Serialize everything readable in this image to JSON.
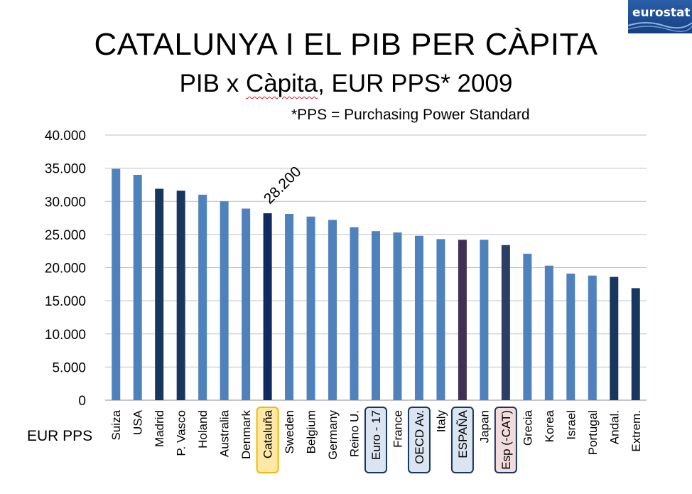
{
  "slide": {
    "title": "CATALUNYA I EL PIB PER CÀPITA",
    "subtitle_prefix": "PIB x ",
    "subtitle_word": "Càpita",
    "subtitle_suffix": ", EUR PPS*   2009",
    "footnote": "*PPS = Purchasing Power Standard",
    "logo_text": "eurostat"
  },
  "colors": {
    "bar_default": "#4f81bd",
    "bar_spanish_region": "#17375e",
    "bar_cataluna": "#0f2a5e",
    "bar_espana": "#403152",
    "bar_esp_cat": "#2b3e63",
    "highlight_yellow_fill": "#fde9a5",
    "highlight_yellow_border": "#f2b90c",
    "highlight_blue_fill": "#dbe5f1",
    "highlight_blue_border": "#17375e",
    "highlight_pink_fill": "#f2dcdb",
    "highlight_pink_border": "#17375e",
    "gridline": "#bfbfbf"
  },
  "chart_data": {
    "type": "bar",
    "ylabel_bottom_left": "EUR PPS",
    "ylim": [
      0,
      40000
    ],
    "y_ticks": [
      "0",
      "5.000",
      "10.000",
      "15.000",
      "20.000",
      "25.000",
      "30.000",
      "35.000",
      "40.000"
    ],
    "y_tick_values": [
      0,
      5000,
      10000,
      15000,
      20000,
      25000,
      30000,
      35000,
      40000
    ],
    "grid": true,
    "categories": [
      "Suiza",
      "USA",
      "Madrid",
      "P. Vasco",
      "Holand",
      "Australia",
      "Denmark",
      "Cataluña",
      "Sweden",
      "Belgium",
      "Germany",
      "Reino U.",
      "Euro - 17",
      "France",
      "OECD Av.",
      "Italy",
      "ESPAÑA",
      "Japan",
      "Esp (-CAT)",
      "Grecia",
      "Korea",
      "Israel",
      "Portugal",
      "Andal.",
      "Extrem."
    ],
    "values": [
      34900,
      34000,
      31900,
      31600,
      31000,
      30000,
      28900,
      28200,
      28100,
      27700,
      27200,
      26100,
      25500,
      25300,
      24800,
      24300,
      24200,
      24200,
      23400,
      22100,
      20300,
      19100,
      18800,
      18600,
      16900
    ],
    "bar_color_keys": [
      "bar_default",
      "bar_default",
      "bar_spanish_region",
      "bar_spanish_region",
      "bar_default",
      "bar_default",
      "bar_default",
      "bar_cataluna",
      "bar_default",
      "bar_default",
      "bar_default",
      "bar_default",
      "bar_default",
      "bar_default",
      "bar_default",
      "bar_default",
      "bar_espana",
      "bar_default",
      "bar_esp_cat",
      "bar_default",
      "bar_default",
      "bar_default",
      "bar_default",
      "bar_spanish_region",
      "bar_spanish_region"
    ],
    "highlighted_labels": {
      "Cataluña": "yellow",
      "Euro - 17": "blue",
      "OECD Av.": "blue",
      "ESPAÑA": "blue",
      "Esp (-CAT)": "pink"
    },
    "annotations": [
      {
        "category": "Cataluña",
        "text": "28.200"
      }
    ]
  }
}
